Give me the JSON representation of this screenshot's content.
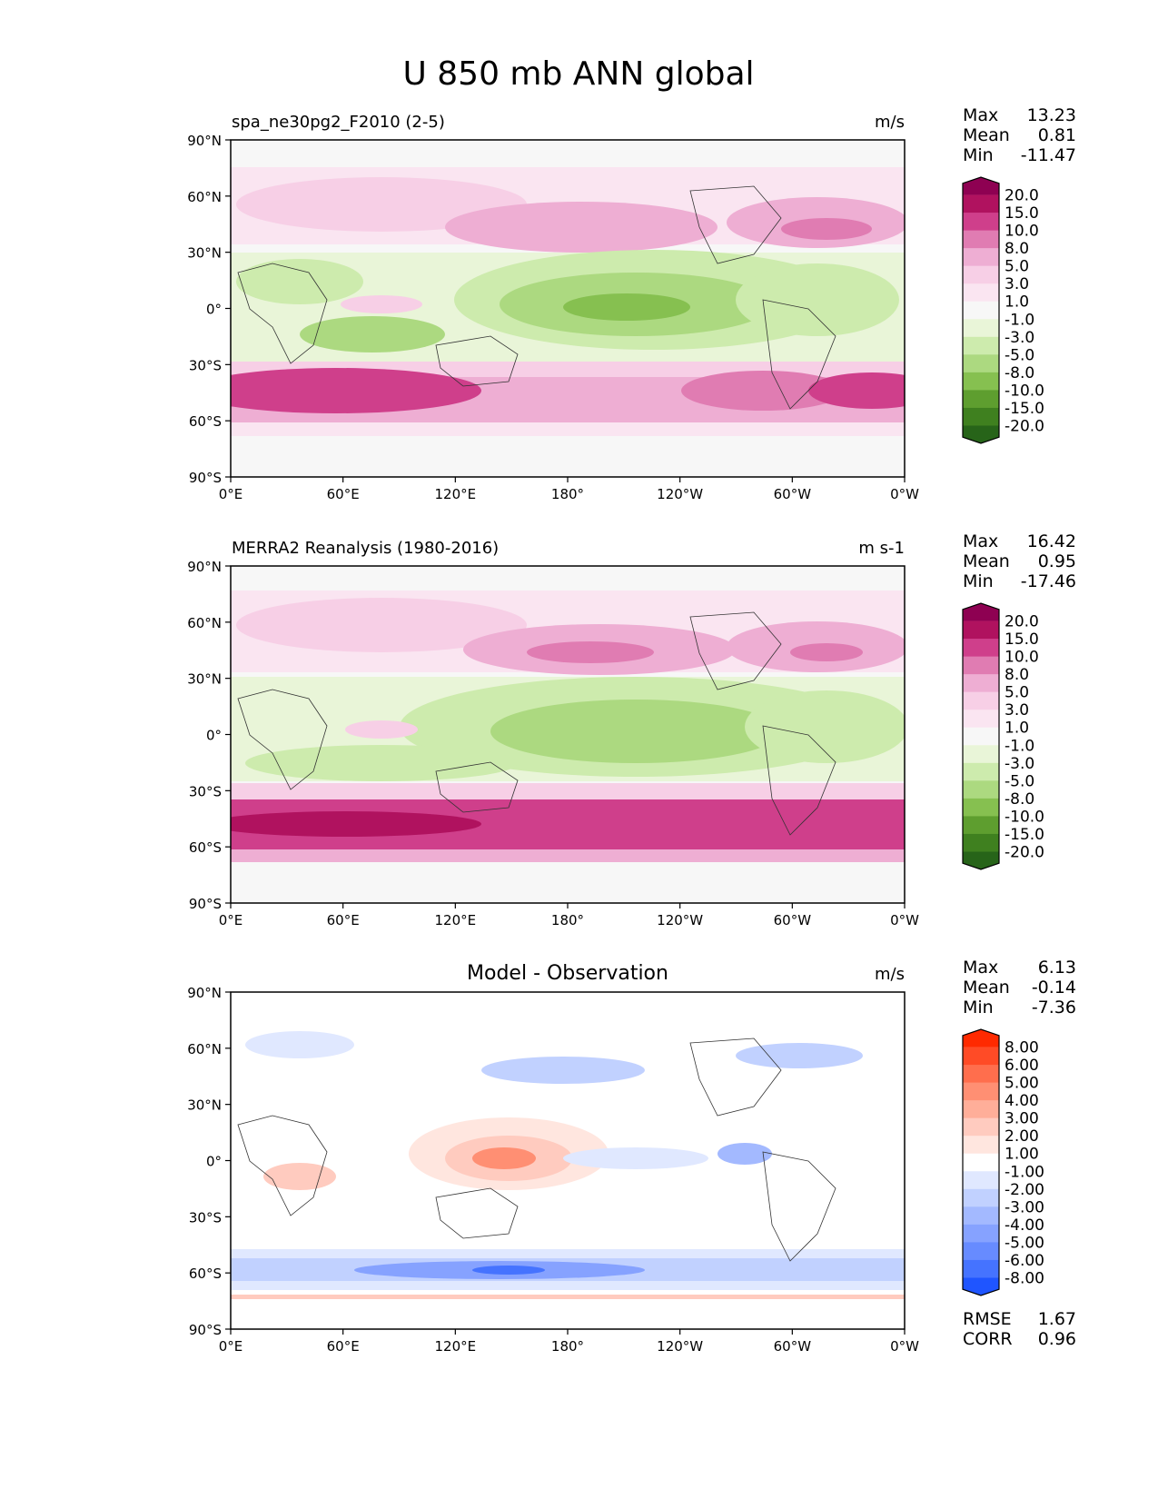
{
  "figure": {
    "title": "U 850 mb ANN global"
  },
  "axes": {
    "lat_ticks": [
      "90°N",
      "60°N",
      "30°N",
      "0°",
      "30°S",
      "60°S",
      "90°S"
    ],
    "lon_ticks": [
      "0°E",
      "60°E",
      "120°E",
      "180°",
      "120°W",
      "60°W",
      "0°W"
    ]
  },
  "panels": [
    {
      "id": "test",
      "left_title": "spa_ne30pg2_F2010 (2-5)",
      "center_title": "",
      "units": "m/s",
      "stats": [
        {
          "label": "Max",
          "value": "13.23"
        },
        {
          "label": "Mean",
          "value": "0.81"
        },
        {
          "label": "Min",
          "value": "-11.47"
        }
      ],
      "extra_stats": [],
      "colorbar": {
        "labels": [
          "20.0",
          "15.0",
          "10.0",
          "8.0",
          "5.0",
          "3.0",
          "1.0",
          "-1.0",
          "-3.0",
          "-5.0",
          "-8.0",
          "-10.0",
          "-15.0",
          "-20.0"
        ],
        "colors": [
          "#8e0152",
          "#b0125f",
          "#cf3f8b",
          "#e07cb2",
          "#eeaed3",
          "#f7cfe6",
          "#fae5f1",
          "#f7f7f7",
          "#e9f5d8",
          "#cdebad",
          "#acd980",
          "#86c050",
          "#5e9e2f",
          "#3f801f",
          "#276419"
        ]
      }
    },
    {
      "id": "reference",
      "left_title": "MERRA2 Reanalysis (1980-2016)",
      "center_title": "",
      "units": "m s-1",
      "stats": [
        {
          "label": "Max",
          "value": "16.42"
        },
        {
          "label": "Mean",
          "value": "0.95"
        },
        {
          "label": "Min",
          "value": "-17.46"
        }
      ],
      "extra_stats": [],
      "colorbar": {
        "labels": [
          "20.0",
          "15.0",
          "10.0",
          "8.0",
          "5.0",
          "3.0",
          "1.0",
          "-1.0",
          "-3.0",
          "-5.0",
          "-8.0",
          "-10.0",
          "-15.0",
          "-20.0"
        ],
        "colors": [
          "#8e0152",
          "#b0125f",
          "#cf3f8b",
          "#e07cb2",
          "#eeaed3",
          "#f7cfe6",
          "#fae5f1",
          "#f7f7f7",
          "#e9f5d8",
          "#cdebad",
          "#acd980",
          "#86c050",
          "#5e9e2f",
          "#3f801f",
          "#276419"
        ]
      }
    },
    {
      "id": "difference",
      "left_title": "",
      "center_title": "Model - Observation",
      "units": "m/s",
      "stats": [
        {
          "label": "Max",
          "value": "6.13"
        },
        {
          "label": "Mean",
          "value": "-0.14"
        },
        {
          "label": "Min",
          "value": "-7.36"
        }
      ],
      "extra_stats": [
        {
          "label": "RMSE",
          "value": "1.67"
        },
        {
          "label": "CORR",
          "value": "0.96"
        }
      ],
      "colorbar": {
        "labels": [
          "8.00",
          "6.00",
          "5.00",
          "4.00",
          "3.00",
          "2.00",
          "1.00",
          "-1.00",
          "-2.00",
          "-3.00",
          "-4.00",
          "-5.00",
          "-6.00",
          "-8.00"
        ],
        "colors": [
          "#ff2a00",
          "#ff4b26",
          "#ff6e4d",
          "#ff8f73",
          "#ffae99",
          "#ffcbbf",
          "#ffe6df",
          "#ffffff",
          "#e0e8ff",
          "#c1d1ff",
          "#a3b9ff",
          "#86a2ff",
          "#678bff",
          "#4573ff",
          "#1f55ff"
        ]
      }
    }
  ]
}
